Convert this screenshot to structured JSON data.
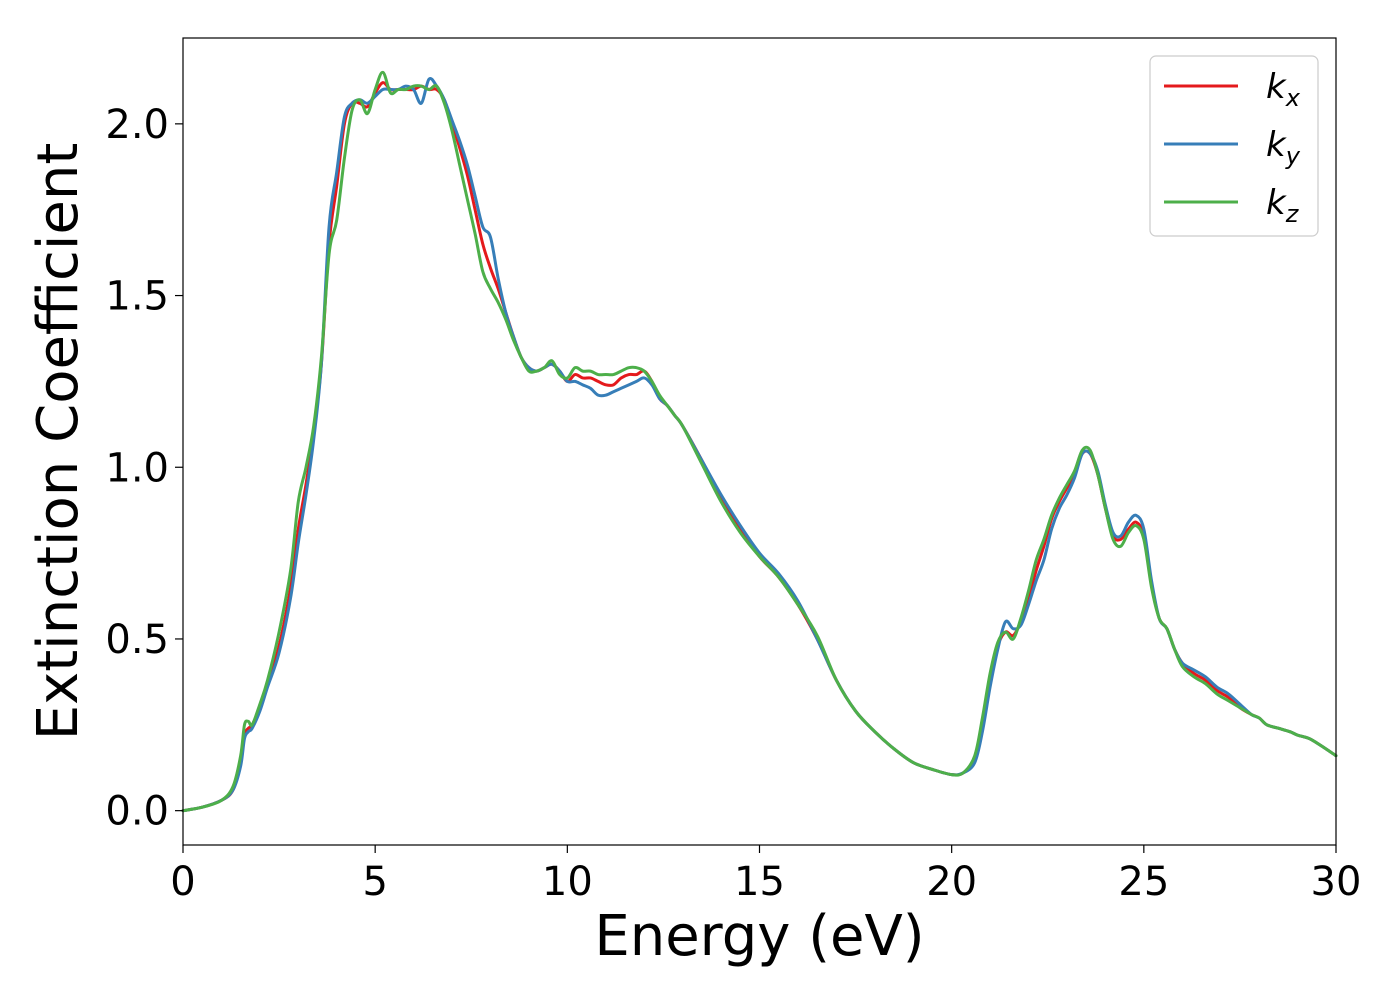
{
  "chart_data": {
    "type": "line",
    "xlabel": "Energy (eV)",
    "ylabel": "Extinction Coefficient",
    "xlim": [
      0,
      30
    ],
    "ylim": [
      -0.1,
      2.25
    ],
    "xticks": [
      0,
      5,
      10,
      15,
      20,
      25,
      30
    ],
    "xtick_labels": [
      "0",
      "5",
      "10",
      "15",
      "20",
      "25",
      "30"
    ],
    "yticks": [
      0.0,
      0.5,
      1.0,
      1.5,
      2.0
    ],
    "ytick_labels": [
      "0.0",
      "0.5",
      "1.0",
      "1.5",
      "2.0"
    ],
    "grid": false,
    "legend_position": "top-right",
    "series": [
      {
        "name": "k",
        "subscript": "x",
        "color": "#e41a1c",
        "x": [
          0,
          0.5,
          1.0,
          1.3,
          1.5,
          1.6,
          1.7,
          1.8,
          2.0,
          2.2,
          2.5,
          2.8,
          3.0,
          3.2,
          3.4,
          3.6,
          3.8,
          4.0,
          4.2,
          4.4,
          4.6,
          4.8,
          5.0,
          5.2,
          5.4,
          5.6,
          5.8,
          6.0,
          6.2,
          6.4,
          6.6,
          6.8,
          7.0,
          7.2,
          7.4,
          7.6,
          7.8,
          8.0,
          8.2,
          8.4,
          8.6,
          8.8,
          9.0,
          9.2,
          9.4,
          9.6,
          9.8,
          10.0,
          10.2,
          10.4,
          10.6,
          10.8,
          11.0,
          11.2,
          11.4,
          11.6,
          11.8,
          12.0,
          12.2,
          12.4,
          12.6,
          12.8,
          13.0,
          13.5,
          14.0,
          14.5,
          15.0,
          15.5,
          16.0,
          16.5,
          17.0,
          17.5,
          18.0,
          18.5,
          19.0,
          19.5,
          20.0,
          20.3,
          20.6,
          20.8,
          21.0,
          21.2,
          21.4,
          21.6,
          21.8,
          22.0,
          22.2,
          22.4,
          22.6,
          22.8,
          23.0,
          23.2,
          23.4,
          23.6,
          23.8,
          24.0,
          24.2,
          24.4,
          24.6,
          24.8,
          25.0,
          25.2,
          25.4,
          25.6,
          25.8,
          26.0,
          26.3,
          26.6,
          26.9,
          27.2,
          27.5,
          27.8,
          28.0,
          28.2,
          28.5,
          28.8,
          29.0,
          29.3,
          29.6,
          30.0
        ],
        "y": [
          0,
          0.01,
          0.03,
          0.06,
          0.14,
          0.22,
          0.24,
          0.25,
          0.3,
          0.37,
          0.48,
          0.65,
          0.82,
          0.95,
          1.1,
          1.3,
          1.65,
          1.82,
          2.0,
          2.06,
          2.06,
          2.05,
          2.09,
          2.12,
          2.1,
          2.1,
          2.1,
          2.1,
          2.11,
          2.1,
          2.1,
          2.07,
          2.0,
          1.93,
          1.85,
          1.75,
          1.65,
          1.58,
          1.52,
          1.45,
          1.38,
          1.32,
          1.29,
          1.28,
          1.29,
          1.3,
          1.28,
          1.25,
          1.27,
          1.26,
          1.26,
          1.25,
          1.24,
          1.24,
          1.26,
          1.27,
          1.27,
          1.28,
          1.25,
          1.2,
          1.18,
          1.15,
          1.12,
          1.02,
          0.91,
          0.82,
          0.74,
          0.68,
          0.6,
          0.5,
          0.38,
          0.29,
          0.23,
          0.18,
          0.14,
          0.12,
          0.105,
          0.11,
          0.15,
          0.25,
          0.38,
          0.48,
          0.52,
          0.51,
          0.55,
          0.62,
          0.7,
          0.77,
          0.85,
          0.9,
          0.94,
          0.98,
          1.04,
          1.04,
          0.98,
          0.88,
          0.8,
          0.79,
          0.82,
          0.84,
          0.8,
          0.66,
          0.56,
          0.53,
          0.47,
          0.43,
          0.4,
          0.38,
          0.35,
          0.33,
          0.3,
          0.28,
          0.27,
          0.25,
          0.24,
          0.23,
          0.22,
          0.21,
          0.19,
          0.16
        ]
      },
      {
        "name": "k",
        "subscript": "y",
        "color": "#377eb8",
        "x": [
          0,
          0.5,
          1.0,
          1.3,
          1.5,
          1.6,
          1.7,
          1.8,
          2.0,
          2.2,
          2.5,
          2.8,
          3.0,
          3.2,
          3.4,
          3.6,
          3.8,
          4.0,
          4.2,
          4.4,
          4.6,
          4.8,
          5.0,
          5.2,
          5.4,
          5.6,
          5.8,
          6.0,
          6.2,
          6.4,
          6.6,
          6.8,
          7.0,
          7.2,
          7.4,
          7.6,
          7.8,
          8.0,
          8.2,
          8.4,
          8.6,
          8.8,
          9.0,
          9.2,
          9.4,
          9.6,
          9.8,
          10.0,
          10.2,
          10.4,
          10.6,
          10.8,
          11.0,
          11.2,
          11.4,
          11.6,
          11.8,
          12.0,
          12.2,
          12.4,
          12.6,
          12.8,
          13.0,
          13.5,
          14.0,
          14.5,
          15.0,
          15.5,
          16.0,
          16.5,
          17.0,
          17.5,
          18.0,
          18.5,
          19.0,
          19.5,
          20.0,
          20.3,
          20.6,
          20.8,
          21.0,
          21.2,
          21.4,
          21.6,
          21.8,
          22.0,
          22.2,
          22.4,
          22.6,
          22.8,
          23.0,
          23.2,
          23.4,
          23.6,
          23.8,
          24.0,
          24.2,
          24.4,
          24.6,
          24.8,
          25.0,
          25.2,
          25.4,
          25.6,
          25.8,
          26.0,
          26.3,
          26.6,
          26.9,
          27.2,
          27.5,
          27.8,
          28.0,
          28.2,
          28.5,
          28.8,
          29.0,
          29.3,
          29.6,
          30.0
        ],
        "y": [
          0,
          0.01,
          0.03,
          0.06,
          0.13,
          0.21,
          0.23,
          0.24,
          0.29,
          0.36,
          0.46,
          0.62,
          0.78,
          0.92,
          1.08,
          1.3,
          1.7,
          1.86,
          2.02,
          2.06,
          2.07,
          2.06,
          2.08,
          2.1,
          2.1,
          2.1,
          2.11,
          2.1,
          2.06,
          2.13,
          2.11,
          2.07,
          2.01,
          1.95,
          1.88,
          1.79,
          1.7,
          1.67,
          1.55,
          1.45,
          1.38,
          1.32,
          1.29,
          1.28,
          1.29,
          1.3,
          1.28,
          1.25,
          1.25,
          1.24,
          1.23,
          1.21,
          1.21,
          1.22,
          1.23,
          1.24,
          1.25,
          1.26,
          1.24,
          1.2,
          1.18,
          1.15,
          1.12,
          1.02,
          0.92,
          0.83,
          0.75,
          0.69,
          0.61,
          0.5,
          0.38,
          0.29,
          0.23,
          0.18,
          0.14,
          0.12,
          0.105,
          0.11,
          0.14,
          0.23,
          0.36,
          0.47,
          0.55,
          0.53,
          0.54,
          0.6,
          0.67,
          0.73,
          0.82,
          0.88,
          0.92,
          0.97,
          1.04,
          1.04,
          0.99,
          0.89,
          0.81,
          0.8,
          0.84,
          0.86,
          0.82,
          0.67,
          0.56,
          0.53,
          0.47,
          0.43,
          0.41,
          0.39,
          0.36,
          0.34,
          0.31,
          0.28,
          0.27,
          0.25,
          0.24,
          0.23,
          0.22,
          0.21,
          0.19,
          0.16
        ]
      },
      {
        "name": "k",
        "subscript": "z",
        "color": "#4daf4a",
        "x": [
          0,
          0.5,
          1.0,
          1.3,
          1.5,
          1.6,
          1.7,
          1.8,
          2.0,
          2.2,
          2.5,
          2.8,
          3.0,
          3.2,
          3.4,
          3.6,
          3.8,
          4.0,
          4.2,
          4.4,
          4.6,
          4.8,
          5.0,
          5.2,
          5.4,
          5.6,
          5.8,
          6.0,
          6.2,
          6.4,
          6.6,
          6.8,
          7.0,
          7.2,
          7.4,
          7.6,
          7.8,
          8.0,
          8.2,
          8.4,
          8.6,
          8.8,
          9.0,
          9.2,
          9.4,
          9.6,
          9.8,
          10.0,
          10.2,
          10.4,
          10.6,
          10.8,
          11.0,
          11.2,
          11.4,
          11.6,
          11.8,
          12.0,
          12.2,
          12.4,
          12.6,
          12.8,
          13.0,
          13.5,
          14.0,
          14.5,
          15.0,
          15.5,
          16.0,
          16.5,
          17.0,
          17.5,
          18.0,
          18.5,
          19.0,
          19.5,
          20.0,
          20.3,
          20.6,
          20.8,
          21.0,
          21.2,
          21.4,
          21.6,
          21.8,
          22.0,
          22.2,
          22.4,
          22.6,
          22.8,
          23.0,
          23.2,
          23.4,
          23.6,
          23.8,
          24.0,
          24.2,
          24.4,
          24.6,
          24.8,
          25.0,
          25.2,
          25.4,
          25.6,
          25.8,
          26.0,
          26.3,
          26.6,
          26.9,
          27.2,
          27.5,
          27.8,
          28.0,
          28.2,
          28.5,
          28.8,
          29.0,
          29.3,
          29.6,
          30.0
        ],
        "y": [
          0,
          0.01,
          0.03,
          0.07,
          0.16,
          0.25,
          0.26,
          0.25,
          0.31,
          0.38,
          0.52,
          0.7,
          0.9,
          1.0,
          1.12,
          1.32,
          1.62,
          1.72,
          1.9,
          2.04,
          2.07,
          2.03,
          2.1,
          2.15,
          2.09,
          2.1,
          2.1,
          2.11,
          2.11,
          2.1,
          2.11,
          2.06,
          1.98,
          1.88,
          1.78,
          1.68,
          1.57,
          1.52,
          1.48,
          1.43,
          1.37,
          1.32,
          1.28,
          1.28,
          1.29,
          1.31,
          1.27,
          1.26,
          1.29,
          1.28,
          1.28,
          1.27,
          1.27,
          1.27,
          1.28,
          1.29,
          1.29,
          1.28,
          1.25,
          1.21,
          1.18,
          1.15,
          1.12,
          1.01,
          0.9,
          0.81,
          0.74,
          0.68,
          0.6,
          0.51,
          0.38,
          0.29,
          0.23,
          0.18,
          0.14,
          0.12,
          0.105,
          0.11,
          0.16,
          0.27,
          0.4,
          0.49,
          0.52,
          0.5,
          0.56,
          0.64,
          0.73,
          0.79,
          0.86,
          0.91,
          0.95,
          0.99,
          1.05,
          1.05,
          0.98,
          0.88,
          0.79,
          0.77,
          0.81,
          0.83,
          0.79,
          0.65,
          0.56,
          0.53,
          0.47,
          0.42,
          0.39,
          0.37,
          0.34,
          0.32,
          0.3,
          0.28,
          0.27,
          0.25,
          0.24,
          0.23,
          0.22,
          0.21,
          0.19,
          0.16
        ]
      }
    ]
  }
}
